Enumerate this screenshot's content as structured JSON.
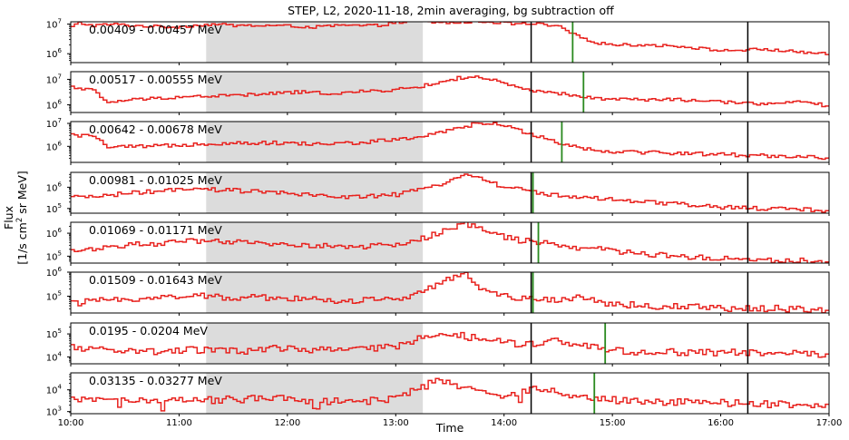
{
  "title": "STEP, L2, 2020-11-18, 2min averaging, bg subtraction off",
  "xlabel": "Time",
  "ylabel_line1": "Flux",
  "ylabel_line2_prefix": "[1/s cm",
  "ylabel_line2_sup": "2",
  "ylabel_line2_suffix": " sr MeV]",
  "colors": {
    "series": "#e8221e",
    "marker": "#2a8a1f",
    "vline": "#000000",
    "shade": "#dcdcdc"
  },
  "chart_data": {
    "type": "line",
    "scale": "log",
    "grid": false,
    "xlim": [
      "10:00",
      "17:00"
    ],
    "x_ticks": [
      "10:00",
      "11:00",
      "12:00",
      "13:00",
      "14:00",
      "15:00",
      "16:00",
      "17:00"
    ],
    "shaded_interval": [
      "11:15",
      "13:15"
    ],
    "vertical_lines": [
      "14:15",
      "16:15"
    ],
    "panels": [
      {
        "label": "0.00409 - 0.00457 MeV",
        "ylim": [
          500000,
          12000000
        ],
        "ticks": [
          {
            "v": 1000000,
            "t": "10",
            "e": "6"
          },
          {
            "v": 10000000,
            "t": "10",
            "e": "7"
          }
        ],
        "marker": "14:38",
        "profile": [
          [
            0,
            6.9
          ],
          [
            5,
            7.05
          ],
          [
            15,
            6.95
          ],
          [
            30,
            7.0
          ],
          [
            45,
            6.95
          ],
          [
            75,
            6.9
          ],
          [
            90,
            6.95
          ],
          [
            105,
            7.0
          ],
          [
            120,
            6.95
          ],
          [
            150,
            6.95
          ],
          [
            180,
            6.9
          ],
          [
            195,
            6.95
          ],
          [
            225,
            6.95
          ],
          [
            240,
            7.05
          ],
          [
            255,
            7.1
          ],
          [
            270,
            7.05
          ],
          [
            285,
            7.05
          ],
          [
            300,
            7.1
          ],
          [
            315,
            7.05
          ],
          [
            330,
            7.0
          ],
          [
            345,
            7.0
          ],
          [
            360,
            6.9
          ],
          [
            375,
            6.55
          ],
          [
            390,
            6.35
          ],
          [
            405,
            6.3
          ],
          [
            420,
            6.3
          ],
          [
            450,
            6.25
          ],
          [
            480,
            6.1
          ],
          [
            510,
            6.15
          ],
          [
            540,
            6.05
          ],
          [
            560,
            5.98
          ]
        ]
      },
      {
        "label": "0.00517 - 0.00555 MeV",
        "ylim": [
          500000,
          20000000
        ],
        "ticks": [
          {
            "v": 1000000,
            "t": "10",
            "e": "6"
          },
          {
            "v": 10000000,
            "t": "10",
            "e": "7"
          }
        ],
        "marker": "14:44",
        "profile": [
          [
            0,
            6.7
          ],
          [
            15,
            6.6
          ],
          [
            25,
            6.1
          ],
          [
            45,
            6.2
          ],
          [
            75,
            6.3
          ],
          [
            105,
            6.35
          ],
          [
            135,
            6.4
          ],
          [
            165,
            6.5
          ],
          [
            195,
            6.45
          ],
          [
            225,
            6.55
          ],
          [
            240,
            6.6
          ],
          [
            255,
            6.7
          ],
          [
            270,
            6.85
          ],
          [
            285,
            7.05
          ],
          [
            300,
            7.1
          ],
          [
            315,
            6.9
          ],
          [
            330,
            6.65
          ],
          [
            345,
            6.5
          ],
          [
            360,
            6.45
          ],
          [
            375,
            6.3
          ],
          [
            390,
            6.25
          ],
          [
            420,
            6.2
          ],
          [
            450,
            6.2
          ],
          [
            480,
            6.1
          ],
          [
            510,
            6.05
          ],
          [
            540,
            6.1
          ],
          [
            560,
            5.95
          ]
        ]
      },
      {
        "label": "0.00642 - 0.00678 MeV",
        "ylim": [
          200000,
          12000000
        ],
        "ticks": [
          {
            "v": 1000000,
            "t": "10",
            "e": "6"
          },
          {
            "v": 10000000,
            "t": "10",
            "e": "7"
          }
        ],
        "marker": "14:32",
        "profile": [
          [
            0,
            6.5
          ],
          [
            20,
            6.4
          ],
          [
            25,
            5.95
          ],
          [
            60,
            6.0
          ],
          [
            90,
            6.1
          ],
          [
            120,
            6.15
          ],
          [
            150,
            6.15
          ],
          [
            180,
            6.1
          ],
          [
            210,
            6.15
          ],
          [
            240,
            6.3
          ],
          [
            255,
            6.4
          ],
          [
            270,
            6.55
          ],
          [
            285,
            6.8
          ],
          [
            300,
            7.0
          ],
          [
            315,
            6.95
          ],
          [
            330,
            6.7
          ],
          [
            345,
            6.45
          ],
          [
            360,
            6.15
          ],
          [
            375,
            5.95
          ],
          [
            390,
            5.8
          ],
          [
            420,
            5.75
          ],
          [
            450,
            5.7
          ],
          [
            480,
            5.65
          ],
          [
            510,
            5.6
          ],
          [
            540,
            5.55
          ],
          [
            560,
            5.5
          ]
        ]
      },
      {
        "label": "0.00981 - 0.01025 MeV",
        "ylim": [
          60000,
          5000000
        ],
        "ticks": [
          {
            "v": 100000,
            "t": "10",
            "e": "5"
          },
          {
            "v": 1000000,
            "t": "10",
            "e": "6"
          }
        ],
        "marker": "14:16",
        "profile": [
          [
            0,
            5.5
          ],
          [
            30,
            5.65
          ],
          [
            60,
            5.8
          ],
          [
            90,
            5.9
          ],
          [
            120,
            5.85
          ],
          [
            150,
            5.75
          ],
          [
            180,
            5.6
          ],
          [
            210,
            5.55
          ],
          [
            240,
            5.65
          ],
          [
            255,
            5.85
          ],
          [
            270,
            6.1
          ],
          [
            285,
            6.5
          ],
          [
            290,
            6.6
          ],
          [
            300,
            6.45
          ],
          [
            315,
            6.1
          ],
          [
            330,
            5.9
          ],
          [
            345,
            5.75
          ],
          [
            360,
            5.6
          ],
          [
            390,
            5.45
          ],
          [
            420,
            5.3
          ],
          [
            450,
            5.2
          ],
          [
            480,
            5.05
          ],
          [
            510,
            5.0
          ],
          [
            540,
            4.95
          ],
          [
            560,
            4.9
          ]
        ]
      },
      {
        "label": "0.01069 - 0.01171 MeV",
        "ylim": [
          50000,
          3000000
        ],
        "ticks": [
          {
            "v": 100000,
            "t": "10",
            "e": "5"
          },
          {
            "v": 1000000,
            "t": "10",
            "e": "6"
          }
        ],
        "marker": "14:19",
        "profile": [
          [
            0,
            5.2
          ],
          [
            30,
            5.45
          ],
          [
            60,
            5.55
          ],
          [
            90,
            5.65
          ],
          [
            120,
            5.6
          ],
          [
            150,
            5.55
          ],
          [
            180,
            5.45
          ],
          [
            210,
            5.4
          ],
          [
            240,
            5.5
          ],
          [
            255,
            5.7
          ],
          [
            270,
            6.0
          ],
          [
            285,
            6.3
          ],
          [
            290,
            6.45
          ],
          [
            300,
            6.2
          ],
          [
            315,
            5.9
          ],
          [
            330,
            5.7
          ],
          [
            345,
            5.6
          ],
          [
            360,
            5.45
          ],
          [
            390,
            5.3
          ],
          [
            420,
            5.1
          ],
          [
            450,
            5.0
          ],
          [
            480,
            4.9
          ],
          [
            510,
            4.85
          ],
          [
            540,
            4.8
          ],
          [
            560,
            4.75
          ]
        ]
      },
      {
        "label": "0.01509 - 0.01643 MeV",
        "ylim": [
          20000,
          1000000
        ],
        "ticks": [
          {
            "v": 100000,
            "t": "10",
            "e": "5"
          },
          {
            "v": 1000000,
            "t": "10",
            "e": "6"
          }
        ],
        "marker": "14:16",
        "profile": [
          [
            0,
            4.7
          ],
          [
            30,
            4.85
          ],
          [
            60,
            4.95
          ],
          [
            90,
            5.0
          ],
          [
            120,
            4.95
          ],
          [
            150,
            4.95
          ],
          [
            180,
            4.85
          ],
          [
            210,
            4.8
          ],
          [
            240,
            4.9
          ],
          [
            255,
            5.15
          ],
          [
            270,
            5.5
          ],
          [
            285,
            5.8
          ],
          [
            290,
            5.9
          ],
          [
            300,
            5.4
          ],
          [
            315,
            5.05
          ],
          [
            330,
            4.95
          ],
          [
            345,
            4.9
          ],
          [
            360,
            4.8
          ],
          [
            375,
            5.0
          ],
          [
            390,
            4.75
          ],
          [
            420,
            4.6
          ],
          [
            450,
            4.55
          ],
          [
            480,
            4.5
          ],
          [
            510,
            4.5
          ],
          [
            540,
            4.45
          ],
          [
            560,
            4.4
          ]
        ]
      },
      {
        "label": "0.0195 - 0.0204 MeV",
        "ylim": [
          5000,
          300000
        ],
        "ticks": [
          {
            "v": 10000,
            "t": "10",
            "e": "4"
          },
          {
            "v": 100000,
            "t": "10",
            "e": "5"
          }
        ],
        "marker": "14:56",
        "profile": [
          [
            0,
            4.4
          ],
          [
            30,
            4.3
          ],
          [
            60,
            4.25
          ],
          [
            90,
            4.3
          ],
          [
            120,
            4.25
          ],
          [
            150,
            4.35
          ],
          [
            180,
            4.3
          ],
          [
            210,
            4.3
          ],
          [
            240,
            4.45
          ],
          [
            255,
            4.75
          ],
          [
            270,
            5.0
          ],
          [
            285,
            4.95
          ],
          [
            300,
            4.8
          ],
          [
            315,
            4.65
          ],
          [
            330,
            4.55
          ],
          [
            345,
            4.6
          ],
          [
            360,
            4.7
          ],
          [
            375,
            4.5
          ],
          [
            390,
            4.35
          ],
          [
            420,
            4.2
          ],
          [
            450,
            4.2
          ],
          [
            480,
            4.2
          ],
          [
            510,
            4.15
          ],
          [
            540,
            4.15
          ],
          [
            560,
            4.1
          ]
        ]
      },
      {
        "label": "0.03135 - 0.03277 MeV",
        "ylim": [
          800,
          60000
        ],
        "ticks": [
          {
            "v": 1000,
            "t": "10",
            "e": "3"
          },
          {
            "v": 10000,
            "t": "10",
            "e": "4"
          }
        ],
        "marker": "14:50",
        "profile": [
          [
            0,
            3.5
          ],
          [
            30,
            3.55
          ],
          [
            60,
            3.55
          ],
          [
            90,
            3.5
          ],
          [
            120,
            3.55
          ],
          [
            150,
            3.6
          ],
          [
            180,
            3.5
          ],
          [
            210,
            3.45
          ],
          [
            240,
            3.6
          ],
          [
            255,
            4.05
          ],
          [
            270,
            4.4
          ],
          [
            285,
            4.3
          ],
          [
            300,
            4.0
          ],
          [
            315,
            3.7
          ],
          [
            330,
            3.85
          ],
          [
            345,
            4.1
          ],
          [
            360,
            3.8
          ],
          [
            375,
            3.75
          ],
          [
            390,
            3.6
          ],
          [
            420,
            3.45
          ],
          [
            450,
            3.45
          ],
          [
            480,
            3.4
          ],
          [
            510,
            3.35
          ],
          [
            540,
            3.35
          ],
          [
            560,
            3.3
          ]
        ]
      }
    ]
  }
}
